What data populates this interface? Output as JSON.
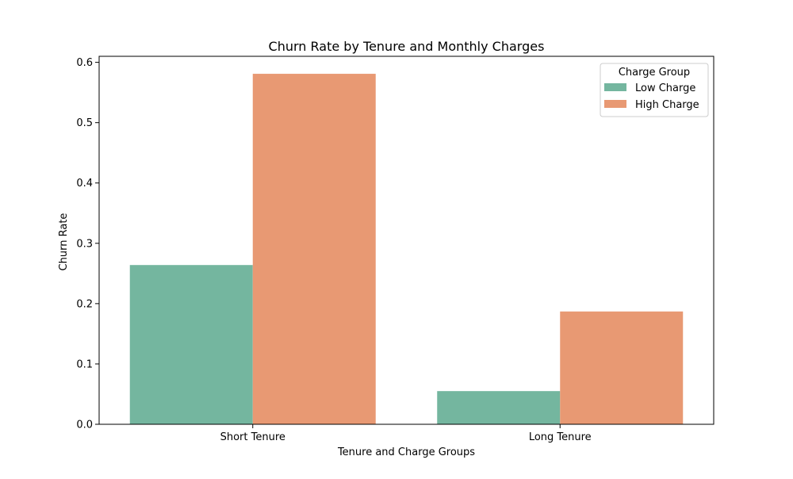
{
  "chart_data": {
    "type": "bar",
    "title": "Churn Rate by Tenure and Monthly Charges",
    "xlabel": "Tenure and Charge Groups",
    "ylabel": "Churn Rate",
    "categories": [
      "Short Tenure",
      "Long Tenure"
    ],
    "series": [
      {
        "name": "Low Charge",
        "values": [
          0.264,
          0.055
        ],
        "color": "#74b69f"
      },
      {
        "name": "High Charge",
        "values": [
          0.581,
          0.187
        ],
        "color": "#e89973"
      }
    ],
    "ylim": [
      0,
      0.61
    ],
    "yticks": [
      0.0,
      0.1,
      0.2,
      0.3,
      0.4,
      0.5,
      0.6
    ],
    "ytick_labels": [
      "0.0",
      "0.1",
      "0.2",
      "0.3",
      "0.4",
      "0.5",
      "0.6"
    ],
    "grid": false,
    "legend": {
      "title": "Charge Group",
      "placement": "top-right"
    }
  }
}
